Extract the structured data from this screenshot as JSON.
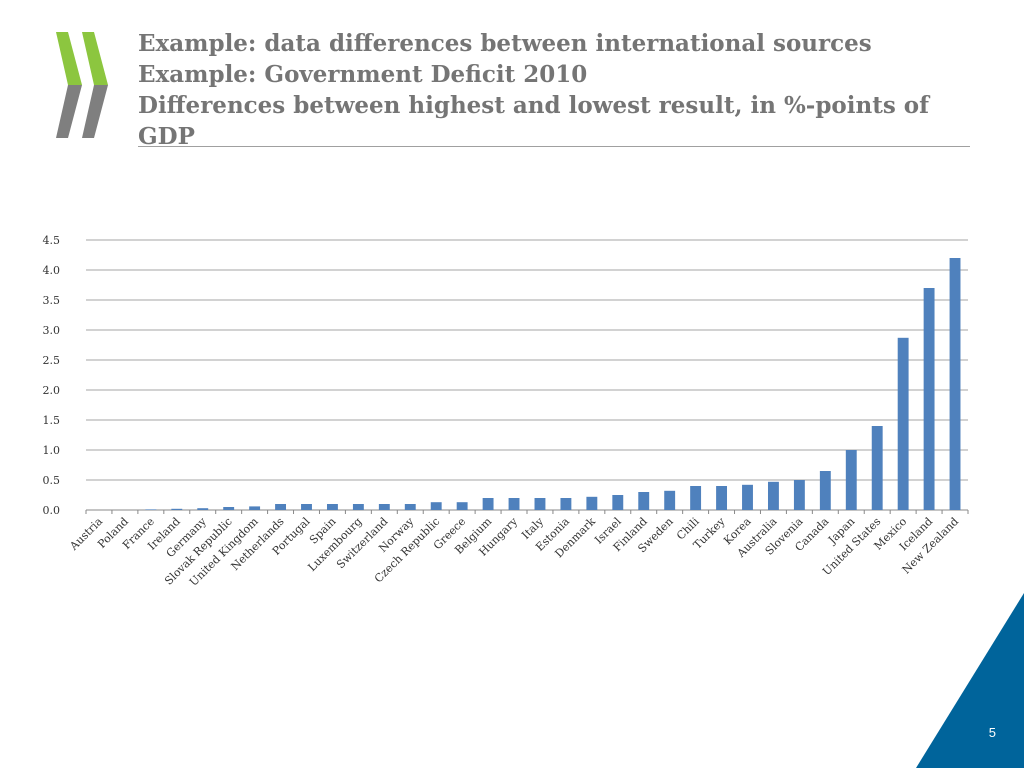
{
  "slide": {
    "title_lines": [
      "Example: data differences between international sources",
      "Example: Government Deficit 2010",
      "Differences between highest and lowest result, in %-points of",
      "GDP"
    ],
    "page_number": "5"
  },
  "colors": {
    "bar": "#4f81bd",
    "logo_green": "#8cc63f",
    "logo_gray": "#7f7f7f",
    "corner_blue": "#00649b",
    "title": "#757575"
  },
  "chart_data": {
    "type": "bar",
    "categories": [
      "Austria",
      "Poland",
      "France",
      "Ireland",
      "Germany",
      "Slovak Republic",
      "United Kingdom",
      "Netherlands",
      "Portugal",
      "Spain",
      "Luxembourg",
      "Switzerland",
      "Norway",
      "Czech Republic",
      "Greece",
      "Belgium",
      "Hungary",
      "Italy",
      "Estonia",
      "Denmark",
      "Israel",
      "Finland",
      "Sweden",
      "Chili",
      "Turkey",
      "Korea",
      "Australia",
      "Slovenia",
      "Canada",
      "Japan",
      "United States",
      "Mexico",
      "Iceland",
      "New Zealand"
    ],
    "values": [
      0.0,
      0.0,
      0.01,
      0.02,
      0.03,
      0.05,
      0.06,
      0.1,
      0.1,
      0.1,
      0.1,
      0.1,
      0.1,
      0.13,
      0.13,
      0.2,
      0.2,
      0.2,
      0.2,
      0.22,
      0.25,
      0.3,
      0.32,
      0.4,
      0.4,
      0.42,
      0.47,
      0.5,
      0.65,
      1.0,
      1.4,
      2.87,
      3.7,
      4.2
    ],
    "yticks": [
      "0.0",
      "0.5",
      "1.0",
      "1.5",
      "2.0",
      "2.5",
      "3.0",
      "3.5",
      "4.0",
      "4.5"
    ],
    "ylim": [
      0,
      4.5
    ],
    "grid": true,
    "legend": "none",
    "xlabel": "",
    "ylabel": ""
  }
}
